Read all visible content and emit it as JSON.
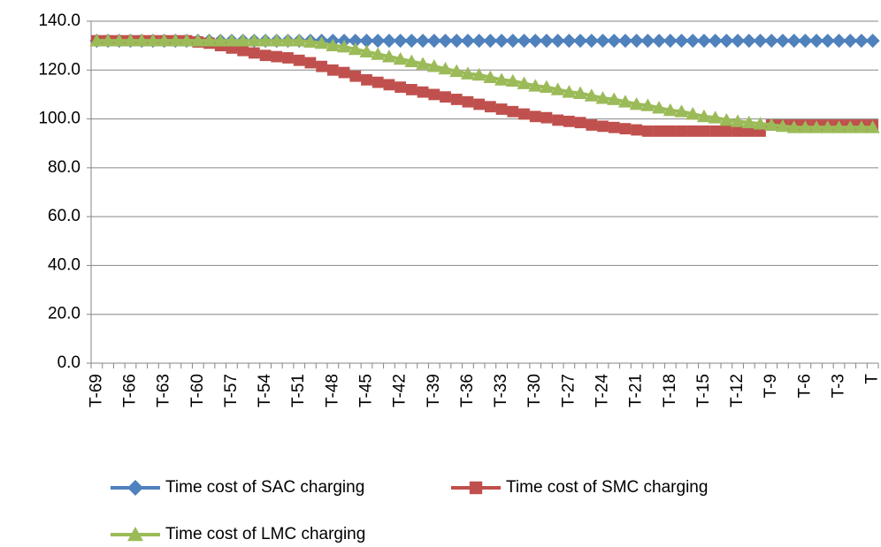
{
  "chart_data": {
    "type": "line",
    "categories": [
      "T-69",
      null,
      null,
      "T-66",
      null,
      null,
      "T-63",
      null,
      null,
      "T-60",
      null,
      null,
      "T-57",
      null,
      null,
      "T-54",
      null,
      null,
      "T-51",
      null,
      null,
      "T-48",
      null,
      null,
      "T-45",
      null,
      null,
      "T-42",
      null,
      null,
      "T-39",
      null,
      null,
      "T-36",
      null,
      null,
      "T-33",
      null,
      null,
      "T-30",
      null,
      null,
      "T-27",
      null,
      null,
      "T-24",
      null,
      null,
      "T-21",
      null,
      null,
      "T-18",
      null,
      null,
      "T-15",
      null,
      null,
      "T-12",
      null,
      null,
      "T-9",
      null,
      null,
      "T-6",
      null,
      null,
      "T-3",
      null,
      null,
      "T"
    ],
    "series": [
      {
        "name": "Time cost of SAC charging",
        "color": "#4f81bd",
        "marker": "diamond",
        "values": [
          132,
          132,
          132,
          132,
          132,
          132,
          132,
          132,
          132,
          132,
          132,
          132,
          132,
          132,
          132,
          132,
          132,
          132,
          132,
          132,
          132,
          132,
          132,
          132,
          132,
          132,
          132,
          132,
          132,
          132,
          132,
          132,
          132,
          132,
          132,
          132,
          132,
          132,
          132,
          132,
          132,
          132,
          132,
          132,
          132,
          132,
          132,
          132,
          132,
          132,
          132,
          132,
          132,
          132,
          132,
          132,
          132,
          132,
          132,
          132,
          132,
          132,
          132,
          132,
          132,
          132,
          132,
          132,
          132,
          132
        ]
      },
      {
        "name": "Time cost of SMC charging",
        "color": "#c0504d",
        "marker": "square",
        "values": [
          132,
          132,
          132,
          132,
          132,
          132,
          132,
          132,
          132,
          131.5,
          131,
          130,
          129,
          128,
          127,
          126,
          125.5,
          125,
          124,
          123,
          121.5,
          120,
          119,
          117.5,
          116,
          115,
          114,
          113,
          112,
          111,
          110,
          109,
          108,
          107,
          106,
          105,
          104,
          103,
          102,
          101,
          100.5,
          99.5,
          99,
          98.5,
          97.5,
          97,
          96.5,
          96,
          95.5,
          95,
          95,
          95,
          95,
          95,
          95,
          95,
          95,
          95,
          95,
          95,
          97.5,
          97.5,
          97.5,
          97.5,
          97.5,
          97.5,
          97.5,
          97.5,
          97.5,
          97.5
        ]
      },
      {
        "name": "Time cost of LMC charging",
        "color": "#9bbb59",
        "marker": "triangle",
        "values": [
          132,
          132,
          132,
          132,
          132,
          132,
          132,
          132,
          132,
          132,
          132,
          132,
          132,
          132,
          132,
          132,
          132,
          132,
          132,
          131.5,
          131,
          130,
          129.5,
          128.5,
          127.5,
          126.5,
          125.5,
          124.5,
          123.5,
          122.5,
          121.5,
          120.5,
          119.5,
          118.5,
          118,
          117,
          116,
          115.5,
          114.5,
          113.5,
          113,
          112,
          111,
          110.5,
          109.5,
          108.5,
          108,
          107,
          106,
          105.5,
          104.5,
          103.5,
          103,
          102,
          101,
          100.5,
          99.5,
          99,
          98.5,
          98,
          97.5,
          97,
          96.5,
          96.5,
          96.5,
          96.5,
          96.5,
          96.5,
          96.5,
          96.5
        ]
      }
    ],
    "ylim": [
      0,
      140
    ],
    "yticks": [
      {
        "value": 0,
        "label": "0.0"
      },
      {
        "value": 20,
        "label": "20.0"
      },
      {
        "value": 40,
        "label": "40.0"
      },
      {
        "value": 60,
        "label": "60.0"
      },
      {
        "value": 80,
        "label": "80.0"
      },
      {
        "value": 100,
        "label": "100.0"
      },
      {
        "value": 120,
        "label": "120.0"
      },
      {
        "value": 140,
        "label": "140.0"
      }
    ],
    "grid": true,
    "legend": "bottom"
  }
}
